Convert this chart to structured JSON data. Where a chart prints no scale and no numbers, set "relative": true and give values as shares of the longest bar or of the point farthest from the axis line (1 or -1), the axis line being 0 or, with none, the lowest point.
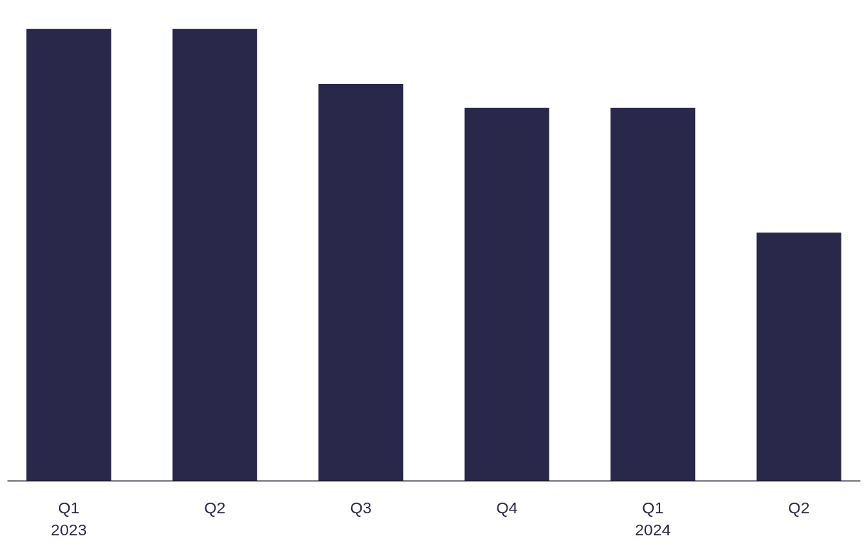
{
  "chart_data": {
    "type": "bar",
    "relative": true,
    "categories": [
      "Q1\n2023",
      "Q2",
      "Q3",
      "Q4",
      "Q1\n2024",
      "Q2"
    ],
    "values": [
      1,
      1,
      0.878,
      0.825,
      0.825,
      0.549
    ],
    "color": "#29284b",
    "grid": false
  }
}
